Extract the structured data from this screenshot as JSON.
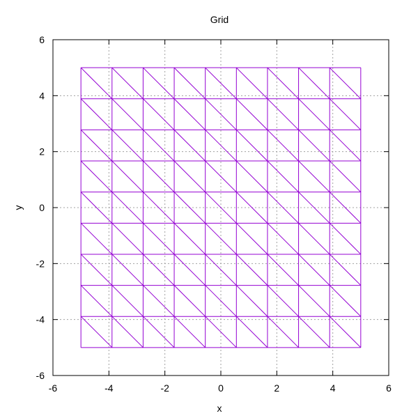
{
  "chart_data": {
    "type": "mesh",
    "title": "Grid",
    "xlabel": "x",
    "ylabel": "y",
    "xlim": [
      -6,
      6
    ],
    "ylim": [
      -6,
      6
    ],
    "xticks": [
      -6,
      -4,
      -2,
      0,
      2,
      4,
      6
    ],
    "yticks": [
      -6,
      -4,
      -2,
      0,
      2,
      4,
      6
    ],
    "grid": true,
    "legend": "none",
    "mesh": {
      "x_range": [
        -5,
        5
      ],
      "y_range": [
        -5,
        5
      ],
      "divisions_x": 9,
      "divisions_y": 9,
      "triangulation": "diagonal top-left to bottom-right"
    },
    "colors": {
      "mesh": "#9400d3",
      "grid": "#a0a0a0",
      "axes": "#000000"
    }
  }
}
